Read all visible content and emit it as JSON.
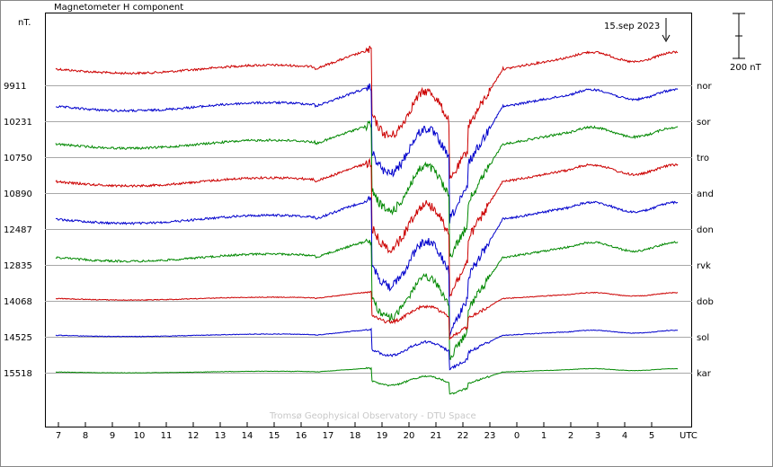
{
  "chart_data": {
    "type": "line",
    "title": "Magnetometer H component",
    "ylabel": "nT.",
    "date_label": "15.sep 2023",
    "scale_label": "200 nT",
    "xlabel": "UTC",
    "watermark": "Tromsø Geophysical Observatory - DTU Space",
    "x_ticks": [
      "7",
      "8",
      "9",
      "10",
      "11",
      "12",
      "13",
      "14",
      "15",
      "16",
      "17",
      "18",
      "19",
      "20",
      "21",
      "22",
      "23",
      "0",
      "1",
      "2",
      "3",
      "4",
      "5"
    ],
    "x_range_hours": [
      6.5,
      30.5
    ],
    "stations": [
      {
        "name": "nor",
        "baseline": "9911",
        "color": "#cc0000",
        "amplitude": 1.0
      },
      {
        "name": "sor",
        "baseline": "10231",
        "color": "#0000cc",
        "amplitude": 1.0
      },
      {
        "name": "tro",
        "baseline": "10750",
        "color": "#008800",
        "amplitude": 1.0
      },
      {
        "name": "and",
        "baseline": "10890",
        "color": "#cc0000",
        "amplitude": 1.0
      },
      {
        "name": "don",
        "baseline": "12487",
        "color": "#0000cc",
        "amplitude": 1.0
      },
      {
        "name": "rvk",
        "baseline": "12835",
        "color": "#008800",
        "amplitude": 0.9
      },
      {
        "name": "dob",
        "baseline": "14068",
        "color": "#cc0000",
        "amplitude": 0.35
      },
      {
        "name": "sol",
        "baseline": "14525",
        "color": "#0000cc",
        "amplitude": 0.3
      },
      {
        "name": "kar",
        "baseline": "15518",
        "color": "#008800",
        "amplitude": 0.2
      }
    ]
  }
}
